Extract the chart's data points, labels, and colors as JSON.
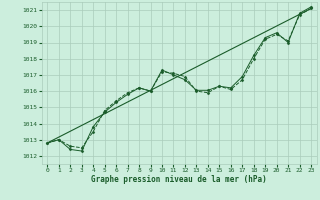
{
  "xlabel": "Graphe pression niveau de la mer (hPa)",
  "background_color": "#cceedd",
  "grid_color": "#aaccbb",
  "line_color": "#1a5c2a",
  "xlim": [
    -0.5,
    23.5
  ],
  "ylim": [
    1011.5,
    1021.5
  ],
  "yticks": [
    1012,
    1013,
    1014,
    1015,
    1016,
    1017,
    1018,
    1019,
    1020,
    1021
  ],
  "xticks": [
    0,
    1,
    2,
    3,
    4,
    5,
    6,
    7,
    8,
    9,
    10,
    11,
    12,
    13,
    14,
    15,
    16,
    17,
    18,
    19,
    20,
    21,
    22,
    23
  ],
  "series1_x": [
    0,
    1,
    2,
    3,
    4,
    5,
    6,
    7,
    8,
    9,
    10,
    11,
    12,
    13,
    14,
    15,
    16,
    17,
    18,
    19,
    20,
    21,
    22,
    23
  ],
  "series1_y": [
    1012.8,
    1013.0,
    1012.6,
    1012.5,
    1013.5,
    1014.8,
    1015.4,
    1015.9,
    1016.2,
    1016.0,
    1017.2,
    1017.1,
    1016.9,
    1016.0,
    1015.9,
    1016.3,
    1016.1,
    1016.7,
    1018.0,
    1019.2,
    1019.5,
    1019.1,
    1020.7,
    1021.1
  ],
  "series2_x": [
    0,
    1,
    2,
    3,
    4,
    5,
    6,
    7,
    8,
    9,
    10,
    11,
    12,
    13,
    14,
    15,
    16,
    17,
    18,
    19,
    20,
    21,
    22,
    23
  ],
  "series2_y": [
    1012.8,
    1013.0,
    1012.4,
    1012.3,
    1013.8,
    1014.7,
    1015.3,
    1015.8,
    1016.2,
    1016.0,
    1017.3,
    1017.0,
    1016.7,
    1016.05,
    1016.05,
    1016.3,
    1016.2,
    1016.9,
    1018.2,
    1019.3,
    1019.6,
    1019.0,
    1020.8,
    1021.2
  ],
  "trend_x": [
    0,
    23
  ],
  "trend_y": [
    1012.8,
    1021.1
  ]
}
